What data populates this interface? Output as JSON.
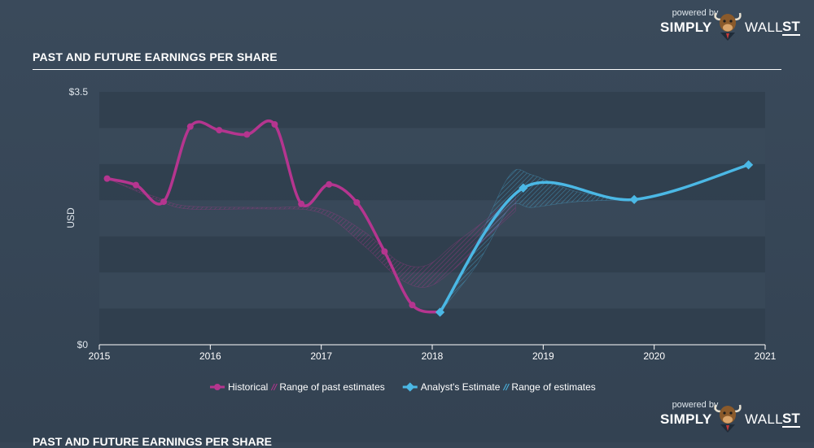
{
  "title": "PAST AND FUTURE EARNINGS PER SHARE",
  "branding": {
    "powered": "powered by",
    "word1": "SIMPLY",
    "word2": "WALL",
    "word3": "ST"
  },
  "colors": {
    "background": "#364555",
    "historical": "#b5358f",
    "estimate": "#4bb8e5",
    "band_dark": "#2f3d4c",
    "band_light": "#3a4959"
  },
  "chart_data": {
    "type": "line",
    "title": "PAST AND FUTURE EARNINGS PER SHARE",
    "ylabel": "USD",
    "ylim": [
      0,
      3.5
    ],
    "xlim": [
      2015,
      2021
    ],
    "y_ticks": [
      {
        "value": 0,
        "label": "$0"
      },
      {
        "value": 3.5,
        "label": "$3.5"
      }
    ],
    "x_ticks": [
      {
        "value": 2015,
        "label": "2015"
      },
      {
        "value": 2016,
        "label": "2016"
      },
      {
        "value": 2017,
        "label": "2017"
      },
      {
        "value": 2018,
        "label": "2018"
      },
      {
        "value": 2019,
        "label": "2019"
      },
      {
        "value": 2020,
        "label": "2020"
      },
      {
        "value": 2021,
        "label": "2021"
      }
    ],
    "grid": true,
    "legend_position": "bottom",
    "series": [
      {
        "name": "Historical",
        "color": "#b5358f",
        "points": [
          [
            2015.07,
            2.3
          ],
          [
            2015.33,
            2.21
          ],
          [
            2015.58,
            1.98
          ],
          [
            2015.82,
            3.02
          ],
          [
            2016.08,
            2.97
          ],
          [
            2016.33,
            2.91
          ],
          [
            2016.58,
            3.05
          ],
          [
            2016.82,
            1.95
          ],
          [
            2017.07,
            2.22
          ],
          [
            2017.32,
            1.97
          ],
          [
            2017.57,
            1.29
          ],
          [
            2017.82,
            0.55
          ],
          [
            2018.07,
            0.45
          ]
        ]
      },
      {
        "name": "Range of past estimates",
        "color": "#b5358f",
        "upper": [
          [
            2015.07,
            2.3
          ],
          [
            2015.5,
            2.05
          ],
          [
            2015.8,
            1.92
          ],
          [
            2016.5,
            1.9
          ],
          [
            2017.0,
            1.88
          ],
          [
            2017.4,
            1.55
          ],
          [
            2017.7,
            1.15
          ],
          [
            2017.95,
            1.1
          ],
          [
            2018.2,
            1.4
          ],
          [
            2018.5,
            1.75
          ],
          [
            2018.75,
            2.1
          ]
        ],
        "lower": [
          [
            2015.07,
            2.3
          ],
          [
            2015.5,
            2.02
          ],
          [
            2015.8,
            1.88
          ],
          [
            2016.5,
            1.88
          ],
          [
            2017.0,
            1.82
          ],
          [
            2017.4,
            1.35
          ],
          [
            2017.7,
            0.92
          ],
          [
            2017.95,
            0.8
          ],
          [
            2018.2,
            1.05
          ],
          [
            2018.5,
            1.5
          ],
          [
            2018.75,
            1.85
          ]
        ]
      },
      {
        "name": "Analyst's Estimate",
        "color": "#4bb8e5",
        "points": [
          [
            2018.07,
            0.45
          ],
          [
            2018.82,
            2.17
          ],
          [
            2019.82,
            2.01
          ],
          [
            2020.85,
            2.49
          ]
        ]
      },
      {
        "name": "Range of estimates",
        "color": "#4bb8e5",
        "upper": [
          [
            2018.07,
            0.45
          ],
          [
            2018.4,
            1.4
          ],
          [
            2018.7,
            2.35
          ],
          [
            2018.9,
            2.35
          ],
          [
            2019.3,
            2.12
          ],
          [
            2019.82,
            2.01
          ]
        ],
        "lower": [
          [
            2018.07,
            0.45
          ],
          [
            2018.4,
            1.1
          ],
          [
            2018.7,
            1.9
          ],
          [
            2018.9,
            1.9
          ],
          [
            2019.3,
            1.98
          ],
          [
            2019.82,
            2.01
          ]
        ]
      }
    ]
  }
}
